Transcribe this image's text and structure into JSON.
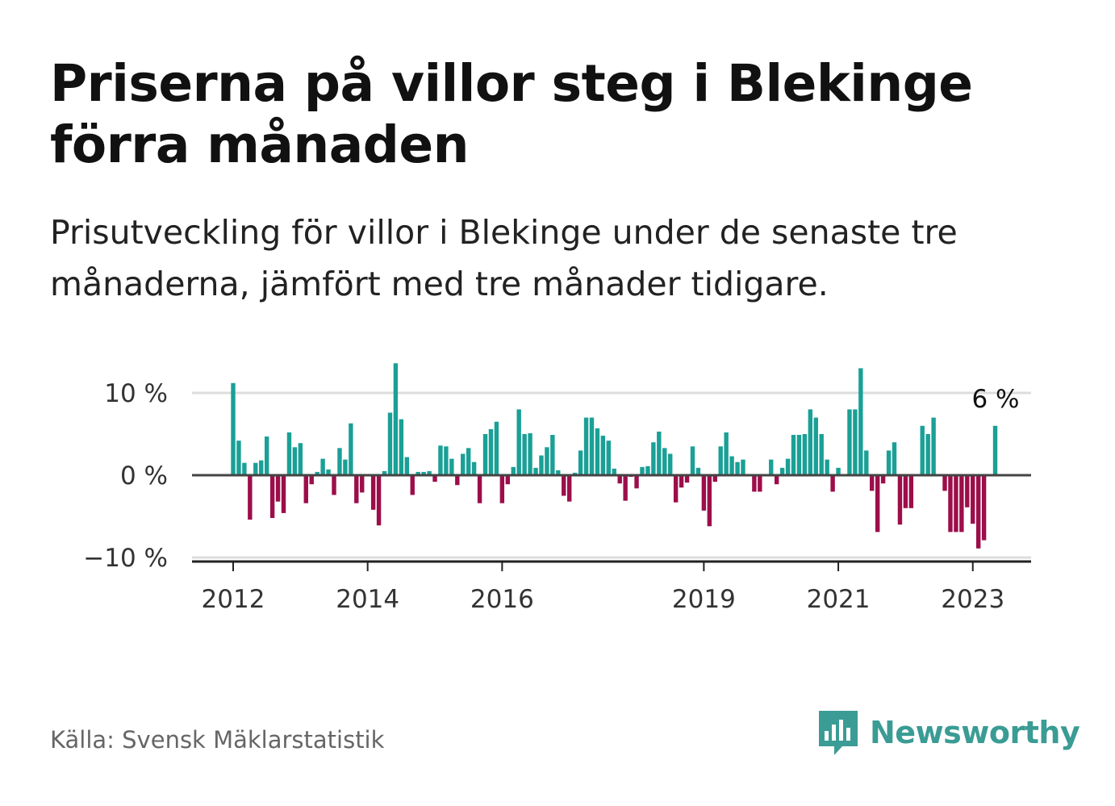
{
  "title": "Priserna på villor steg i Blekinge förra månaden",
  "subtitle": "Prisutveckling för villor i Blekinge under de senaste tre månaderna, jämfört med tre månader tidigare.",
  "source": "Källa: Svensk Mäklarstatistik",
  "brand": {
    "name": "Newsworthy",
    "logo_icon": "bar-chart-speech-bubble-icon",
    "color": "#3a9c94"
  },
  "colors": {
    "positive": "#1aa096",
    "negative": "#9c0e4a",
    "zero_line": "#444444",
    "grid": "#dddddd",
    "axis": "#222222"
  },
  "chart_data": {
    "type": "bar",
    "title": "Priserna på villor steg i Blekinge förra månaden",
    "subtitle": "Prisutveckling för villor i Blekinge under de senaste tre månaderna, jämfört med tre månader tidigare.",
    "y_unit": "%",
    "ylim": [
      -10.5,
      14
    ],
    "y_ticks": [
      {
        "value": 10,
        "label": "10 %"
      },
      {
        "value": 0,
        "label": "0 %"
      },
      {
        "value": -10,
        "label": "−10 %"
      }
    ],
    "x_ticks": [
      "2012",
      "2014",
      "2016",
      "2019",
      "2021",
      "2023"
    ],
    "x_tick_index": [
      0,
      24,
      48,
      84,
      108,
      132
    ],
    "grid": true,
    "annotation": {
      "label": "6 %",
      "index": 136
    },
    "start": "2012-01",
    "values": [
      11.2,
      4.2,
      1.5,
      -5.4,
      1.5,
      1.8,
      4.7,
      -5.2,
      -3.2,
      -4.6,
      5.2,
      3.4,
      3.9,
      -3.4,
      -1.1,
      0.4,
      2.0,
      0.7,
      -2.4,
      3.3,
      1.9,
      6.3,
      -3.4,
      -2.1,
      0.0,
      -4.2,
      -6.1,
      0.5,
      7.6,
      13.6,
      6.8,
      2.2,
      -2.4,
      0.4,
      0.4,
      0.5,
      -0.8,
      3.6,
      3.5,
      2.0,
      -1.2,
      2.6,
      3.3,
      1.6,
      -3.4,
      5.0,
      5.6,
      6.5,
      -3.4,
      -1.1,
      1.0,
      8.0,
      5.0,
      5.1,
      0.9,
      2.4,
      3.4,
      4.9,
      0.6,
      -2.5,
      -3.2,
      0.3,
      3.0,
      7.0,
      7.0,
      5.7,
      4.8,
      4.2,
      0.8,
      -1.0,
      -3.1,
      -0.2,
      -1.6,
      1.0,
      1.1,
      4.0,
      5.3,
      3.3,
      2.6,
      -3.3,
      -1.5,
      -0.9,
      3.5,
      0.9,
      -4.3,
      -6.2,
      -0.8,
      3.5,
      5.2,
      2.3,
      1.6,
      1.9,
      0.0,
      -2.0,
      -2.0,
      0.0,
      1.9,
      -1.1,
      0.9,
      2.0,
      4.9,
      4.9,
      5.0,
      8.0,
      7.0,
      5.0,
      1.9,
      -2.0,
      0.9,
      0.0,
      8.0,
      8.0,
      13.0,
      3.0,
      -1.9,
      -6.9,
      -1.0,
      3.0,
      4.0,
      -6.0,
      -4.0,
      -4.0,
      0.0,
      6.0,
      5.0,
      7.0,
      0.0,
      -1.9,
      -6.9,
      -6.9,
      -6.9,
      -3.9,
      -5.9,
      -8.9,
      -7.9,
      0.0,
      6.0
    ]
  }
}
